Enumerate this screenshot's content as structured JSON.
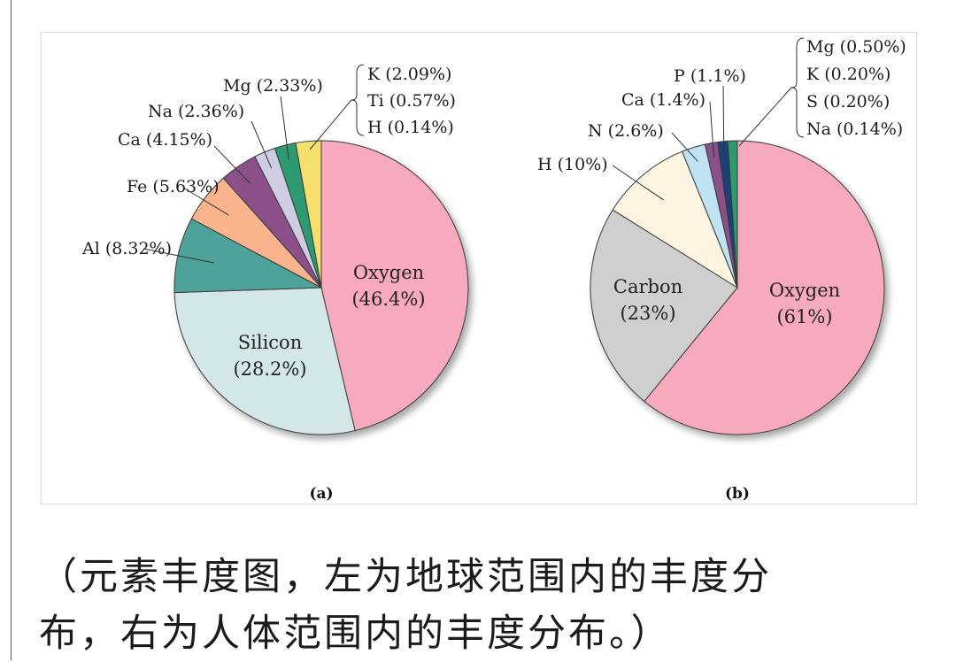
{
  "caption": {
    "line1": "（元素丰度图，左为地球范围内的丰度分",
    "line2": "布，右为人体范围内的丰度分布。）"
  },
  "chart_data": [
    {
      "type": "pie",
      "panel_label": "(a)",
      "slices": [
        {
          "name": "Oxygen",
          "value": 46.4,
          "label": "Oxygen",
          "value_label": "(46.4%)",
          "color": "#f7a9bd",
          "inside": true
        },
        {
          "name": "Silicon",
          "value": 28.2,
          "label": "Silicon",
          "value_label": "(28.2%)",
          "color": "#d3e7e8",
          "inside": true
        },
        {
          "name": "Al",
          "value": 8.32,
          "label": "Al (8.32%)",
          "color": "#4ea399"
        },
        {
          "name": "Fe",
          "value": 5.63,
          "label": "Fe (5.63%)",
          "color": "#f9b48e"
        },
        {
          "name": "Ca",
          "value": 4.15,
          "label": "Ca (4.15%)",
          "color": "#8b4f8a"
        },
        {
          "name": "Na",
          "value": 2.36,
          "label": "Na (2.36%)",
          "color": "#cfcde3"
        },
        {
          "name": "Mg",
          "value": 2.33,
          "label": "Mg (2.33%)",
          "color": "#2f9a72"
        },
        {
          "name": "K+Ti+H",
          "value": 2.8,
          "label": "",
          "color": "#f6e06d"
        }
      ],
      "bracket_labels": [
        "K (2.09%)",
        "Ti (0.57%)",
        "H (0.14%)"
      ]
    },
    {
      "type": "pie",
      "panel_label": "(b)",
      "slices": [
        {
          "name": "Oxygen",
          "value": 61,
          "label": "Oxygen",
          "value_label": "(61%)",
          "color": "#f7a9bd",
          "inside": true
        },
        {
          "name": "Carbon",
          "value": 23,
          "label": "Carbon",
          "value_label": "(23%)",
          "color": "#cfcfcf",
          "inside": true
        },
        {
          "name": "H",
          "value": 10,
          "label": "H (10%)",
          "color": "#fdf4e2"
        },
        {
          "name": "N",
          "value": 2.6,
          "label": "N (2.6%)",
          "color": "#bfe3f3"
        },
        {
          "name": "Ca",
          "value": 1.4,
          "label": "Ca (1.4%)",
          "color": "#8b4f8a"
        },
        {
          "name": "P",
          "value": 1.1,
          "label": "P (1.1%)",
          "color": "#1d3f78"
        },
        {
          "name": "Mg+K+S+Na",
          "value": 1.04,
          "label": "",
          "color": "#2f9a72"
        }
      ],
      "bracket_labels": [
        "Mg (0.50%)",
        "K (0.20%)",
        "S (0.20%)",
        "Na (0.14%)"
      ]
    }
  ]
}
